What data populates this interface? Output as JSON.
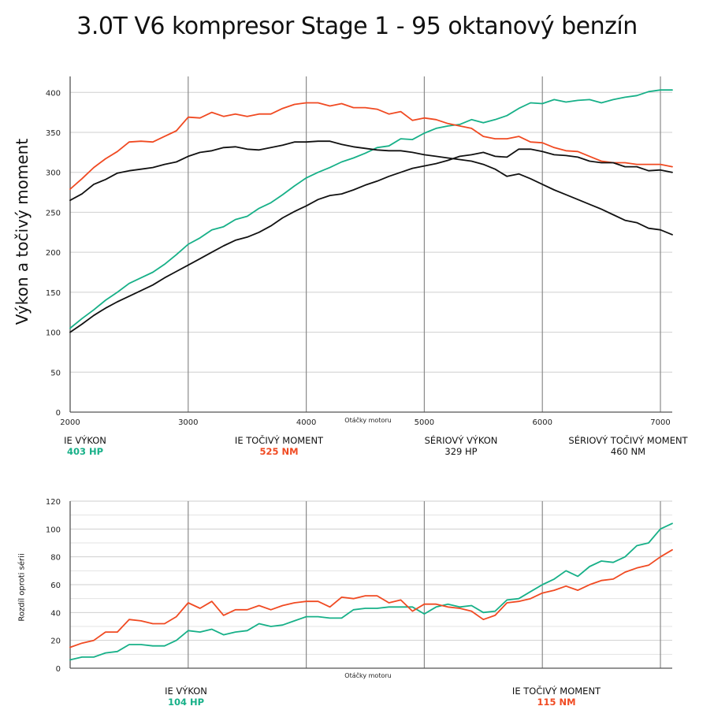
{
  "page": {
    "title": "3.0T V6 kompresor Stage 1 - 95 oktanový benzín"
  },
  "chart_data": [
    {
      "type": "line",
      "ylabel": "Výkon a točivý moment",
      "xlabel": "Otáčky motoru",
      "xlim": [
        2000,
        7100
      ],
      "ylim": [
        0,
        420
      ],
      "xticks": [
        2000,
        3000,
        4000,
        5000,
        6000,
        7000
      ],
      "yticks": [
        0,
        50,
        100,
        150,
        200,
        250,
        300,
        350,
        400
      ],
      "grid": true,
      "x": [
        2000,
        2100,
        2200,
        2300,
        2400,
        2500,
        2600,
        2700,
        2800,
        2900,
        3000,
        3100,
        3200,
        3300,
        3400,
        3500,
        3600,
        3700,
        3800,
        3900,
        4000,
        4100,
        4200,
        4300,
        4400,
        4500,
        4600,
        4700,
        4800,
        4900,
        5000,
        5100,
        5200,
        5300,
        5400,
        5500,
        5600,
        5700,
        5800,
        5900,
        6000,
        6100,
        6200,
        6300,
        6400,
        6500,
        6600,
        6700,
        6800,
        6900,
        7000,
        7100
      ],
      "series": [
        {
          "name": "IE VÝKON",
          "color": "#17b088",
          "values": [
            105,
            117,
            128,
            140,
            150,
            161,
            168,
            175,
            185,
            197,
            210,
            218,
            228,
            232,
            241,
            245,
            255,
            262,
            272,
            283,
            293,
            300,
            306,
            313,
            318,
            324,
            331,
            333,
            342,
            341,
            349,
            355,
            358,
            360,
            366,
            362,
            366,
            371,
            380,
            387,
            386,
            391,
            388,
            390,
            391,
            387,
            391,
            394,
            396,
            401,
            403,
            403
          ]
        },
        {
          "name": "IE TOČIVÝ MOMENT",
          "color": "#f04a22",
          "values": [
            279,
            292,
            306,
            317,
            326,
            338,
            339,
            338,
            345,
            352,
            369,
            368,
            375,
            370,
            373,
            370,
            373,
            373,
            380,
            385,
            387,
            387,
            383,
            386,
            381,
            381,
            379,
            373,
            376,
            365,
            368,
            366,
            361,
            358,
            355,
            345,
            342,
            342,
            345,
            338,
            337,
            331,
            327,
            326,
            320,
            314,
            312,
            312,
            310,
            310,
            310,
            307
          ]
        },
        {
          "name": "SÉRIOVÝ VÝKON",
          "color": "#111111",
          "values": [
            100,
            110,
            121,
            130,
            138,
            145,
            152,
            159,
            168,
            176,
            184,
            192,
            200,
            208,
            215,
            219,
            225,
            233,
            243,
            251,
            258,
            266,
            271,
            273,
            278,
            284,
            289,
            295,
            300,
            305,
            308,
            311,
            315,
            320,
            322,
            325,
            320,
            319,
            329,
            329,
            326,
            322,
            321,
            319,
            314,
            312,
            312,
            307,
            307,
            302,
            303,
            300
          ]
        },
        {
          "name": "SÉRIOVÝ TOČIVÝ MOMENT",
          "color": "#111111",
          "values": [
            265,
            273,
            285,
            291,
            299,
            302,
            304,
            306,
            310,
            313,
            320,
            325,
            327,
            331,
            332,
            329,
            328,
            331,
            334,
            338,
            338,
            339,
            339,
            335,
            332,
            330,
            328,
            327,
            327,
            325,
            322,
            320,
            318,
            316,
            314,
            310,
            304,
            295,
            298,
            292,
            285,
            278,
            272,
            266,
            260,
            254,
            247,
            240,
            237,
            230,
            228,
            222
          ]
        }
      ]
    },
    {
      "type": "line",
      "ylabel": "Rozdíl oproti sérii",
      "xlabel": "Otáčky motoru",
      "xlim": [
        2000,
        7100
      ],
      "ylim": [
        0,
        120
      ],
      "xticks": [
        2000,
        3000,
        4000,
        5000,
        6000,
        7000
      ],
      "yticks": [
        0,
        20,
        40,
        60,
        80,
        100,
        120
      ],
      "grid": true,
      "x": [
        2000,
        2100,
        2200,
        2300,
        2400,
        2500,
        2600,
        2700,
        2800,
        2900,
        3000,
        3100,
        3200,
        3300,
        3400,
        3500,
        3600,
        3700,
        3800,
        3900,
        4000,
        4100,
        4200,
        4300,
        4400,
        4500,
        4600,
        4700,
        4800,
        4900,
        5000,
        5100,
        5200,
        5300,
        5400,
        5500,
        5600,
        5700,
        5800,
        5900,
        6000,
        6100,
        6200,
        6300,
        6400,
        6500,
        6600,
        6700,
        6800,
        6900,
        7000,
        7100
      ],
      "series": [
        {
          "name": "IE VÝKON",
          "color": "#17b088",
          "values": [
            6,
            8,
            8,
            11,
            12,
            17,
            17,
            16,
            16,
            20,
            27,
            26,
            28,
            24,
            26,
            27,
            32,
            30,
            31,
            34,
            37,
            37,
            36,
            36,
            42,
            43,
            43,
            44,
            44,
            44,
            39,
            44,
            46,
            44,
            45,
            40,
            41,
            49,
            50,
            55,
            60,
            64,
            70,
            66,
            73,
            77,
            76,
            80,
            88,
            90,
            100,
            104
          ]
        },
        {
          "name": "IE TOČIVÝ MOMENT",
          "color": "#f04a22",
          "values": [
            15,
            18,
            20,
            26,
            26,
            35,
            34,
            32,
            32,
            37,
            47,
            43,
            48,
            38,
            42,
            42,
            45,
            42,
            45,
            47,
            48,
            48,
            44,
            51,
            50,
            52,
            52,
            47,
            49,
            41,
            46,
            46,
            44,
            43,
            41,
            35,
            38,
            47,
            48,
            50,
            54,
            56,
            59,
            56,
            60,
            63,
            64,
            69,
            72,
            74,
            80,
            85
          ]
        }
      ]
    }
  ],
  "legend_top": [
    {
      "label": "IE VÝKON",
      "value": "403 HP",
      "tone": "green"
    },
    {
      "label": "IE TOČIVÝ MOMENT",
      "value": "525 NM",
      "tone": "red"
    },
    {
      "label": "SÉRIOVÝ VÝKON",
      "value": "329 HP",
      "tone": "dark"
    },
    {
      "label": "SÉRIOVÝ TOČIVÝ MOMENT",
      "value": "460 NM",
      "tone": "dark"
    }
  ],
  "legend_bottom": [
    {
      "label": "IE VÝKON",
      "value": "104 HP",
      "tone": "green"
    },
    {
      "label": "IE TOČIVÝ MOMENT",
      "value": "115 NM",
      "tone": "red"
    }
  ]
}
